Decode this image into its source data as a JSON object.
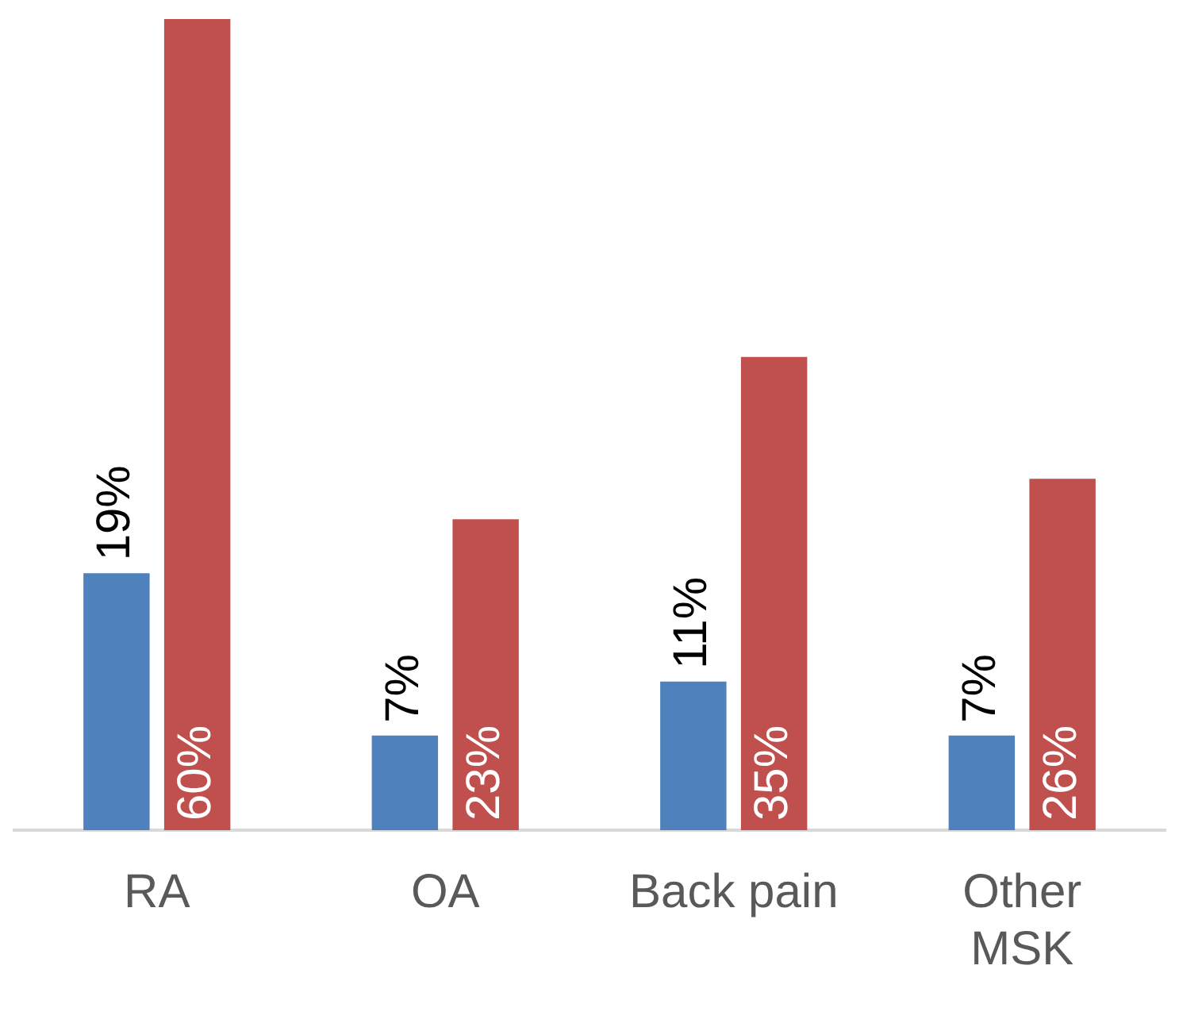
{
  "chart_data": {
    "type": "bar",
    "categories": [
      "RA",
      "OA",
      "Back pain",
      "Other MSK"
    ],
    "series": [
      {
        "color": "#4f81bd",
        "values": [
          19,
          7,
          11,
          7
        ],
        "value_labels": [
          "19%",
          "7%",
          "11%",
          "7%"
        ]
      },
      {
        "color": "#c0504d",
        "values": [
          60,
          23,
          35,
          26
        ],
        "value_labels": [
          "60%",
          "23%",
          "35%",
          "26%"
        ]
      }
    ],
    "grid": false,
    "legend": false
  }
}
